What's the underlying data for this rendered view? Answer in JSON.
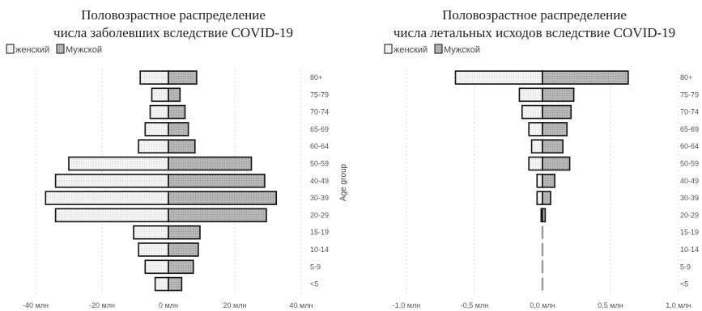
{
  "age_axis_label": "Age group",
  "colors": {
    "female_fill": "#f2f2f2",
    "male_fill": "#b3b3b3",
    "outline": "#111111"
  },
  "chart_data": [
    {
      "type": "bar",
      "orientation": "horizontal-pyramid",
      "title_lines": [
        "Половозрастное распределение",
        "числа заболевших вследствие COVID-19"
      ],
      "legend": [
        "женский",
        "Мужской"
      ],
      "categories": [
        "80+",
        "75-79",
        "70-74",
        "65-69",
        "60-64",
        "50-59",
        "40-49",
        "30-39",
        "20-29",
        "15-19",
        "10-14",
        "5-9",
        "<5"
      ],
      "series": [
        {
          "name": "женский",
          "values": [
            -8.5,
            -5,
            -5.5,
            -7,
            -9,
            -30,
            -34,
            -37,
            -34,
            -10.5,
            -9,
            -7,
            -4
          ],
          "color": "#f2f2f2"
        },
        {
          "name": "Мужской",
          "values": [
            8.5,
            3.5,
            5,
            6,
            8,
            25,
            29,
            32.5,
            29.5,
            9.5,
            9,
            7.5,
            4
          ],
          "color": "#b3b3b3"
        }
      ],
      "xlim": [
        -40,
        40
      ],
      "xticks": [
        -40,
        -20,
        0,
        20,
        40
      ],
      "xtick_labels": [
        "-40 млн",
        "-20 млн",
        "0 млн",
        "20 млн",
        "40 млн"
      ],
      "grid": true
    },
    {
      "type": "bar",
      "orientation": "horizontal-pyramid",
      "title_lines": [
        "Половозрастное распределение",
        "числа летальных исходов вследствие COVID-19"
      ],
      "legend": [
        "женский",
        "Мужской"
      ],
      "categories": [
        "80+",
        "75-79",
        "70-74",
        "65-69",
        "60-64",
        "50-59",
        "40-49",
        "30-39",
        "20-29",
        "15-19",
        "10-14",
        "5-9",
        "<5"
      ],
      "series": [
        {
          "name": "женский",
          "values": [
            -0.64,
            -0.17,
            -0.15,
            -0.1,
            -0.08,
            -0.1,
            -0.04,
            -0.04,
            -0.01,
            -0.003,
            -0.002,
            -0.002,
            -0.002
          ],
          "color": "#f2f2f2"
        },
        {
          "name": "Мужской",
          "values": [
            0.63,
            0.23,
            0.21,
            0.18,
            0.15,
            0.2,
            0.09,
            0.06,
            0.02,
            0.003,
            0.002,
            0.002,
            0.002
          ],
          "color": "#b3b3b3"
        }
      ],
      "xlim": [
        -1.0,
        1.0
      ],
      "xticks": [
        -1.0,
        -0.5,
        0.0,
        0.5,
        1.0
      ],
      "xtick_labels": [
        "-1,0 млн",
        "-0,5 млн",
        "0,0 млн",
        "0,5 млн",
        "1,0 млн"
      ],
      "grid": true
    }
  ]
}
